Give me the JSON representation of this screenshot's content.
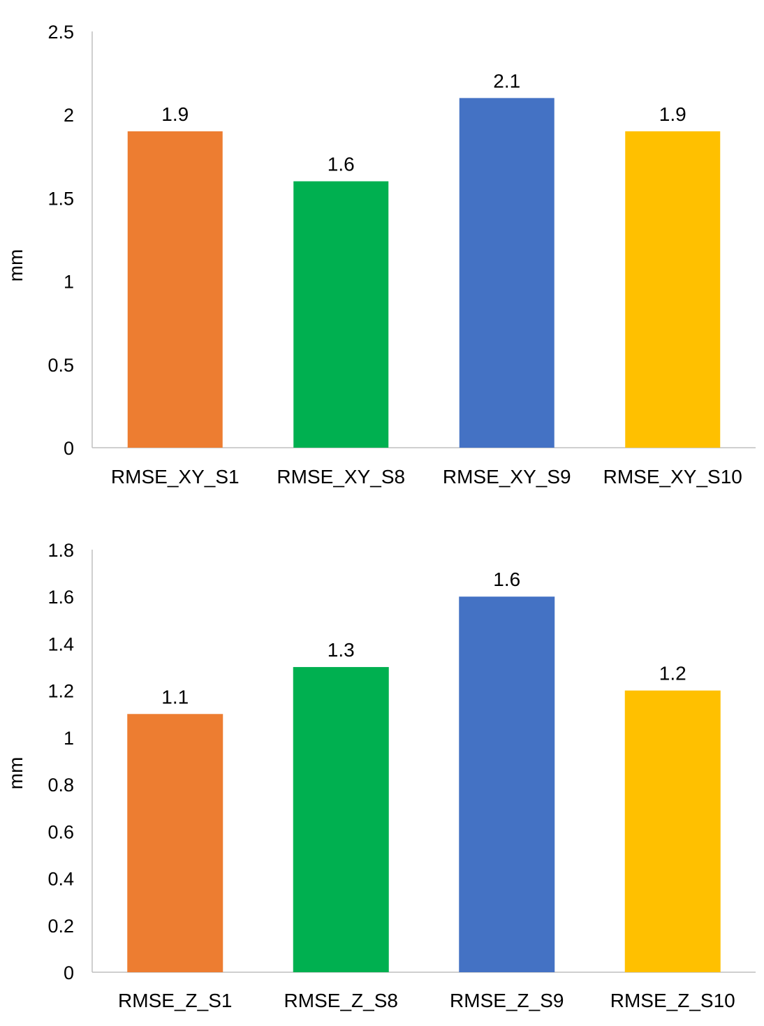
{
  "chart_data": [
    {
      "type": "bar",
      "title": "",
      "xlabel": "",
      "ylabel": "mm",
      "ylim": [
        0,
        2.5
      ],
      "yticks": [
        "0",
        "0.5",
        "1",
        "1.5",
        "2",
        "2.5"
      ],
      "categories": [
        "RMSE_XY_S1",
        "RMSE_XY_S8",
        "RMSE_XY_S9",
        "RMSE_XY_S10"
      ],
      "values": [
        1.9,
        1.6,
        2.1,
        1.9
      ],
      "data_labels": [
        "1.9",
        "1.6",
        "2.1",
        "1.9"
      ],
      "colors": [
        "#ED7D31",
        "#00B050",
        "#4472C4",
        "#FFC000"
      ],
      "grid": false,
      "legend": "none"
    },
    {
      "type": "bar",
      "title": "",
      "xlabel": "",
      "ylabel": "mm",
      "ylim": [
        0,
        1.8
      ],
      "yticks": [
        "0",
        "0.2",
        "0.4",
        "0.6",
        "0.8",
        "1",
        "1.2",
        "1.4",
        "1.6",
        "1.8"
      ],
      "categories": [
        "RMSE_Z_S1",
        "RMSE_Z_S8",
        "RMSE_Z_S9",
        "RMSE_Z_S10"
      ],
      "values": [
        1.1,
        1.3,
        1.6,
        1.2
      ],
      "data_labels": [
        "1.1",
        "1.3",
        "1.6",
        "1.2"
      ],
      "colors": [
        "#ED7D31",
        "#00B050",
        "#4472C4",
        "#FFC000"
      ],
      "grid": false,
      "legend": "none"
    }
  ]
}
